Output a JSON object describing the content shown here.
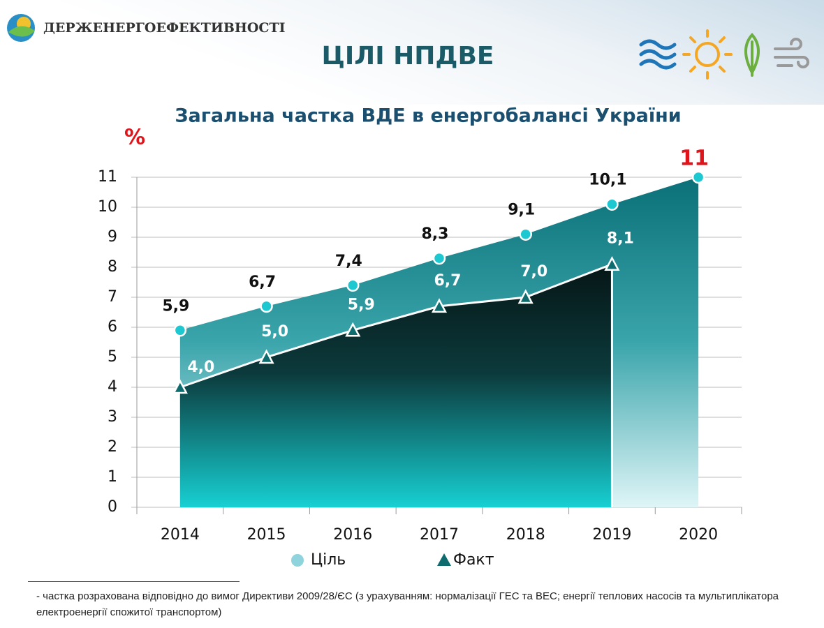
{
  "header": {
    "brand": "ДЕРЖЕНЕРГОЕФЕКТИВНОСТІ",
    "title": "ЦІЛІ НПДВЕ"
  },
  "chart_data": {
    "type": "area",
    "title": "Загальна частка ВДЕ в енергобалансі України",
    "y_label": "%",
    "categories": [
      "2014",
      "2015",
      "2016",
      "2017",
      "2018",
      "2019",
      "2020"
    ],
    "series": [
      {
        "name": "Ціль",
        "color": "#1ec8d0",
        "values": [
          5.9,
          6.7,
          7.4,
          8.3,
          9.1,
          10.1,
          11
        ],
        "value_labels": [
          "5,9",
          "6,7",
          "7,4",
          "8,3",
          "9,1",
          "10,1",
          "11"
        ]
      },
      {
        "name": "Факт",
        "color": "#0e6c6e",
        "values": [
          4.0,
          5.0,
          5.9,
          6.7,
          7.0,
          8.1,
          null
        ],
        "value_labels": [
          "4,0",
          "5,0",
          "5,9",
          "6,7",
          "7,0",
          "8,1",
          null
        ]
      }
    ],
    "ylim": [
      0,
      11
    ],
    "yticks": [
      0,
      1,
      2,
      3,
      4,
      5,
      6,
      7,
      8,
      9,
      10,
      11
    ],
    "grid": true
  },
  "footnote": "- частка розрахована відповідно до вимог Директиви 2009/28/ЄС (з урахуванням: нормалізації ГЕС та ВЕС; енергії теплових насосів та мультиплікатора електроенергії спожитої транспортом)"
}
